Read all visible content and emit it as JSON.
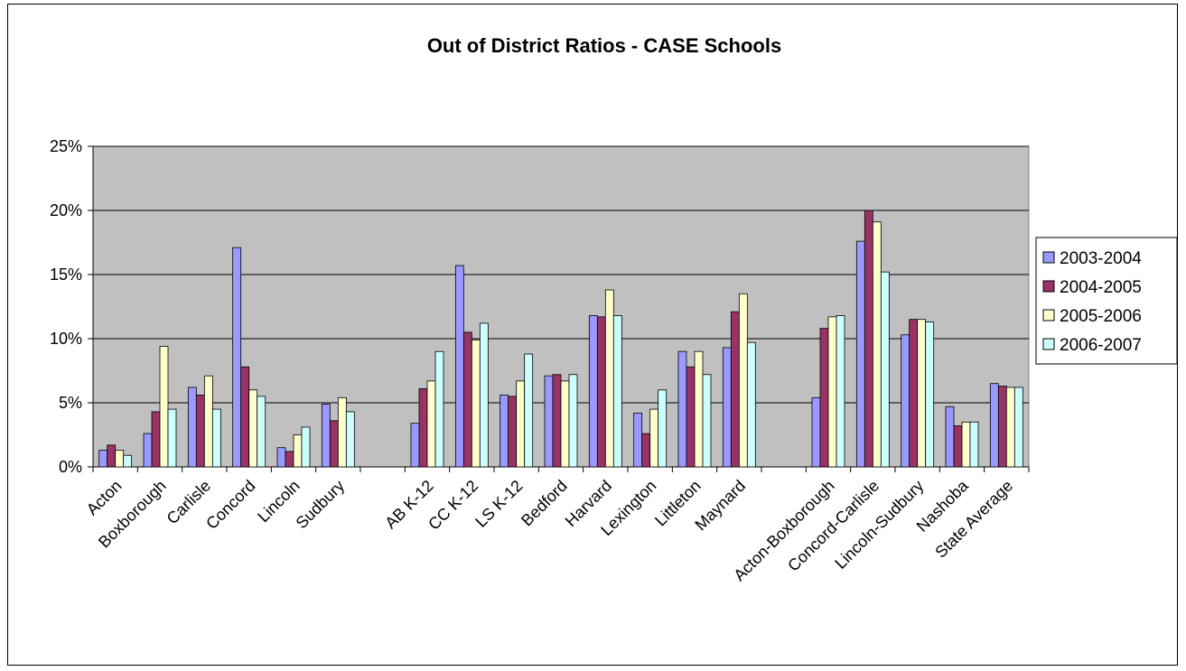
{
  "chart_data": {
    "type": "bar",
    "title": "Out of District Ratios - CASE Schools",
    "xlabel": "",
    "ylabel": "",
    "ylim": [
      0,
      0.25
    ],
    "yticks": [
      "0%",
      "5%",
      "10%",
      "15%",
      "20%",
      "25%"
    ],
    "grid": true,
    "legend_position": "right",
    "plot_background": "#C0C0C0",
    "categories": [
      "Acton",
      "Boxborough",
      "Carlisle",
      "Concord",
      "Lincoln",
      "Sudbury",
      "",
      "AB K-12",
      "CC K-12",
      "LS K-12",
      "Bedford",
      "Harvard",
      "Lexington",
      "Littleton",
      "Maynard",
      "",
      "Acton-Boxborough",
      "Concord-Carlisle",
      "Lincoln-Sudbury",
      "Nashoba",
      "State Average"
    ],
    "series": [
      {
        "name": "2003-2004",
        "color": "#9999FF",
        "values": [
          0.013,
          0.026,
          0.062,
          0.171,
          0.015,
          0.049,
          null,
          0.034,
          0.157,
          0.056,
          0.071,
          0.118,
          0.042,
          0.09,
          0.093,
          null,
          0.054,
          0.176,
          0.103,
          0.047,
          0.065
        ]
      },
      {
        "name": "2004-2005",
        "color": "#993366",
        "values": [
          0.017,
          0.043,
          0.056,
          0.078,
          0.012,
          0.036,
          null,
          0.061,
          0.105,
          0.055,
          0.072,
          0.117,
          0.026,
          0.078,
          0.121,
          null,
          0.108,
          0.2,
          0.115,
          0.032,
          0.063
        ]
      },
      {
        "name": "2005-2006",
        "color": "#FFFFCC",
        "values": [
          0.013,
          0.094,
          0.071,
          0.06,
          0.025,
          0.054,
          null,
          0.067,
          0.099,
          0.067,
          0.067,
          0.138,
          0.045,
          0.09,
          0.135,
          null,
          0.117,
          0.191,
          0.115,
          0.035,
          0.062
        ]
      },
      {
        "name": "2006-2007",
        "color": "#CCFFFF",
        "values": [
          0.009,
          0.045,
          0.045,
          0.055,
          0.031,
          0.043,
          null,
          0.09,
          0.112,
          0.088,
          0.072,
          0.118,
          0.06,
          0.072,
          0.097,
          null,
          0.118,
          0.152,
          0.113,
          0.035,
          0.062
        ]
      }
    ]
  }
}
